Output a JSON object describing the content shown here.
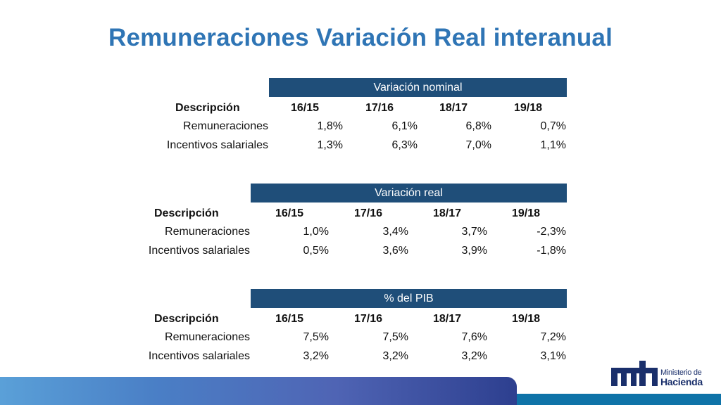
{
  "title": "Remuneraciones Variación Real interanual",
  "tables": [
    {
      "header": "Variación nominal",
      "columns": [
        "Descripción",
        "16/15",
        "17/16",
        "18/17",
        "19/18"
      ],
      "rows": [
        {
          "label": "Remuneraciones",
          "values": [
            "1,8%",
            "6,1%",
            "6,8%",
            "0,7%"
          ]
        },
        {
          "label": "Incentivos salariales",
          "values": [
            "1,3%",
            "6,3%",
            "7,0%",
            "1,1%"
          ]
        }
      ]
    },
    {
      "header": "Variación real",
      "columns": [
        "Descripción",
        "16/15",
        "17/16",
        "18/17",
        "19/18"
      ],
      "rows": [
        {
          "label": "Remuneraciones",
          "values": [
            "1,0%",
            "3,4%",
            "3,7%",
            "-2,3%"
          ]
        },
        {
          "label": "Incentivos salariales",
          "values": [
            "0,5%",
            "3,6%",
            "3,9%",
            "-1,8%"
          ]
        }
      ]
    },
    {
      "header": "% del PIB",
      "columns": [
        "Descripción",
        "16/15",
        "17/16",
        "18/17",
        "19/18"
      ],
      "rows": [
        {
          "label": "Remuneraciones",
          "values": [
            "7,5%",
            "7,5%",
            "7,6%",
            "7,2%"
          ]
        },
        {
          "label": "Incentivos salariales",
          "values": [
            "3,2%",
            "3,2%",
            "3,2%",
            "3,1%"
          ]
        }
      ]
    }
  ],
  "logo": {
    "line1": "Ministerio de",
    "line2": "Hacienda"
  },
  "colors": {
    "title": "#2f75b5",
    "band": "#1f4e79",
    "footer": "#0f73a8"
  }
}
